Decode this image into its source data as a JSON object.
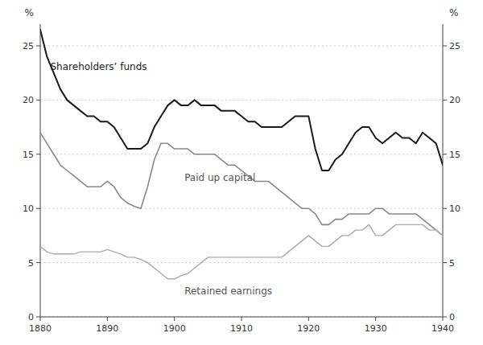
{
  "chart_data": {
    "type": "line",
    "ylabel": "%",
    "y2label": "%",
    "x": [
      1880,
      1881,
      1882,
      1883,
      1884,
      1885,
      1886,
      1887,
      1888,
      1889,
      1890,
      1891,
      1892,
      1893,
      1894,
      1895,
      1896,
      1897,
      1898,
      1899,
      1900,
      1901,
      1902,
      1903,
      1904,
      1905,
      1906,
      1907,
      1908,
      1909,
      1910,
      1911,
      1912,
      1913,
      1914,
      1915,
      1916,
      1917,
      1918,
      1919,
      1920,
      1921,
      1922,
      1923,
      1924,
      1925,
      1926,
      1927,
      1928,
      1929,
      1930,
      1931,
      1932,
      1933,
      1934,
      1935,
      1936,
      1937,
      1938,
      1939,
      1940
    ],
    "xlim": [
      1880,
      1940
    ],
    "xticks": [
      1880,
      1890,
      1900,
      1910,
      1920,
      1930,
      1940
    ],
    "ylim": [
      0,
      27
    ],
    "yticks": [
      0,
      5,
      10,
      15,
      20,
      25
    ],
    "y2lim": [
      0,
      27
    ],
    "y2ticks": [
      0,
      5,
      10,
      15,
      20,
      25
    ],
    "grid": "y",
    "series": [
      {
        "name": "Shareholders’ funds",
        "color": "#1a1a1a",
        "annotation": {
          "x": 1881.5,
          "y": 22.8
        },
        "values": [
          26.5,
          24.0,
          22.5,
          21.0,
          20.0,
          19.5,
          19.0,
          18.5,
          18.5,
          18.0,
          18.0,
          17.5,
          16.5,
          15.5,
          15.5,
          15.5,
          16.0,
          17.5,
          18.5,
          19.5,
          20.0,
          19.5,
          19.5,
          20.0,
          19.5,
          19.5,
          19.5,
          19.0,
          19.0,
          19.0,
          18.5,
          18.0,
          18.0,
          17.5,
          17.5,
          17.5,
          17.5,
          18.0,
          18.5,
          18.5,
          18.5,
          15.5,
          13.5,
          13.5,
          14.5,
          15.0,
          16.0,
          17.0,
          17.5,
          17.5,
          16.5,
          16.0,
          16.5,
          17.0,
          16.5,
          16.5,
          16.0,
          17.0,
          16.5,
          16.0,
          14.0
        ]
      },
      {
        "name": "Paid up capital",
        "color": "#888888",
        "annotation": {
          "x": 1901.5,
          "y": 12.5
        },
        "values": [
          17.0,
          16.0,
          15.0,
          14.0,
          13.5,
          13.0,
          12.5,
          12.0,
          12.0,
          12.0,
          12.5,
          12.0,
          11.0,
          10.5,
          10.2,
          10.0,
          12.0,
          14.5,
          16.0,
          16.0,
          15.5,
          15.5,
          15.5,
          15.0,
          15.0,
          15.0,
          15.0,
          14.5,
          14.0,
          14.0,
          13.5,
          13.0,
          12.5,
          12.5,
          12.5,
          12.0,
          11.5,
          11.0,
          10.5,
          10.0,
          10.0,
          9.5,
          8.5,
          8.5,
          9.0,
          9.0,
          9.5,
          9.5,
          9.5,
          9.5,
          10.0,
          10.0,
          9.5,
          9.5,
          9.5,
          9.5,
          9.5,
          9.0,
          8.5,
          8.0,
          7.5
        ]
      },
      {
        "name": "Retained earnings",
        "color": "#aaaaaa",
        "annotation": {
          "x": 1901.5,
          "y": 2.1
        },
        "values": [
          6.5,
          6.0,
          5.8,
          5.8,
          5.8,
          5.8,
          6.0,
          6.0,
          6.0,
          6.0,
          6.2,
          6.0,
          5.8,
          5.5,
          5.5,
          5.3,
          5.0,
          4.5,
          4.0,
          3.5,
          3.5,
          3.8,
          4.0,
          4.5,
          5.0,
          5.5,
          5.5,
          5.5,
          5.5,
          5.5,
          5.5,
          5.5,
          5.5,
          5.5,
          5.5,
          5.5,
          5.5,
          6.0,
          6.5,
          7.0,
          7.5,
          7.0,
          6.5,
          6.5,
          7.0,
          7.5,
          7.5,
          8.0,
          8.0,
          8.5,
          7.5,
          7.5,
          8.0,
          8.5,
          8.5,
          8.5,
          8.5,
          8.5,
          8.0,
          8.0,
          7.5
        ]
      }
    ]
  }
}
